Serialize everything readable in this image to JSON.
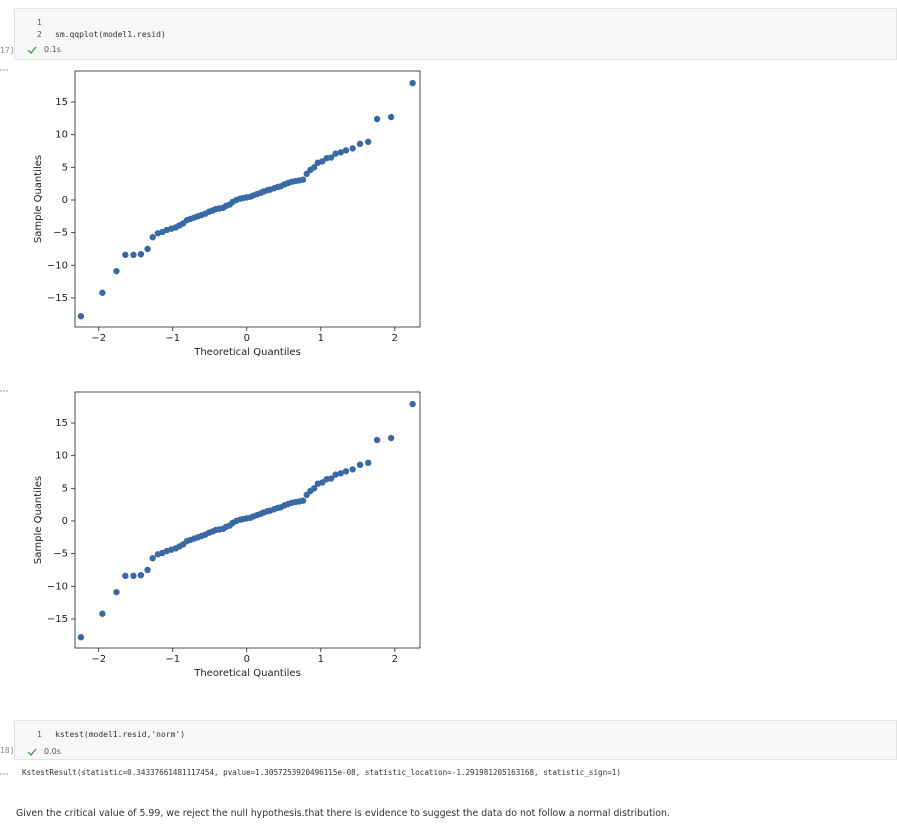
{
  "cell1": {
    "execution_label": "17]",
    "code_lines": [
      {
        "number": "1"
      },
      {
        "number": "2",
        "code": "sm.qqplot(model1.resid)"
      }
    ],
    "status": "0.1s"
  },
  "chart_data": [
    {
      "type": "scatter",
      "x_label": "Theoretical Quantiles",
      "y_label": "Sample Quantiles",
      "color": "#3a6aa3",
      "grid": false,
      "xlim": [
        -2.32,
        2.34
      ],
      "ylim": [
        -19.45,
        19.75
      ],
      "xticks": [
        {
          "value": -2,
          "label": "−2"
        },
        {
          "value": -1,
          "label": "−1"
        },
        0,
        1,
        2
      ],
      "yticks": [
        {
          "value": -15,
          "label": "−15"
        },
        {
          "value": -10,
          "label": "−10"
        },
        {
          "value": -5,
          "label": "−5"
        },
        0,
        5,
        10,
        15
      ],
      "x": [
        -2.24,
        -1.95,
        -1.76,
        -1.64,
        -1.53,
        -1.43,
        -1.34,
        -1.27,
        -1.2,
        -1.14,
        -1.08,
        -1.02,
        -0.96,
        -0.91,
        -0.86,
        -0.81,
        -0.76,
        -0.71,
        -0.66,
        -0.61,
        -0.56,
        -0.51,
        -0.46,
        -0.42,
        -0.37,
        -0.32,
        -0.28,
        -0.23,
        -0.19,
        -0.14,
        -0.09,
        -0.05,
        0,
        0.05,
        0.09,
        0.14,
        0.19,
        0.23,
        0.28,
        0.32,
        0.37,
        0.42,
        0.46,
        0.51,
        0.56,
        0.61,
        0.66,
        0.71,
        0.76,
        0.81,
        0.86,
        0.91,
        0.96,
        1.02,
        1.08,
        1.14,
        1.2,
        1.27,
        1.34,
        1.43,
        1.53,
        1.64,
        1.76,
        1.95,
        2.24
      ],
      "values": [
        -17.8,
        -14.2,
        -10.9,
        -8.4,
        -8.4,
        -8.3,
        -7.5,
        -5.7,
        -5.1,
        -4.9,
        -4.6,
        -4.4,
        -4.2,
        -3.9,
        -3.6,
        -3.1,
        -2.9,
        -2.7,
        -2.5,
        -2.3,
        -2.1,
        -1.8,
        -1.6,
        -1.4,
        -1.3,
        -1.2,
        -0.9,
        -0.7,
        -0.3,
        0,
        0.2,
        0.3,
        0.4,
        0.5,
        0.7,
        0.9,
        1.1,
        1.3,
        1.5,
        1.6,
        1.8,
        2,
        2.1,
        2.4,
        2.6,
        2.8,
        2.9,
        3,
        3.1,
        4,
        4.6,
        5,
        5.7,
        5.9,
        6.4,
        6.5,
        7.1,
        7.3,
        7.6,
        7.9,
        8.6,
        8.9,
        12.4,
        12.7,
        17.9
      ]
    },
    {
      "type": "scatter",
      "x_label": "Theoretical Quantiles",
      "y_label": "Sample Quantiles",
      "color": "#3a6aa3",
      "grid": false,
      "xlim": [
        -2.32,
        2.34
      ],
      "ylim": [
        -19.45,
        19.75
      ],
      "xticks": [
        {
          "value": -2,
          "label": "−2"
        },
        {
          "value": -1,
          "label": "−1"
        },
        0,
        1,
        2
      ],
      "yticks": [
        {
          "value": -15,
          "label": "−15"
        },
        {
          "value": -10,
          "label": "−10"
        },
        {
          "value": -5,
          "label": "−5"
        },
        0,
        5,
        10,
        15
      ],
      "x": [
        -2.24,
        -1.95,
        -1.76,
        -1.64,
        -1.53,
        -1.43,
        -1.34,
        -1.27,
        -1.2,
        -1.14,
        -1.08,
        -1.02,
        -0.96,
        -0.91,
        -0.86,
        -0.81,
        -0.76,
        -0.71,
        -0.66,
        -0.61,
        -0.56,
        -0.51,
        -0.46,
        -0.42,
        -0.37,
        -0.32,
        -0.28,
        -0.23,
        -0.19,
        -0.14,
        -0.09,
        -0.05,
        0,
        0.05,
        0.09,
        0.14,
        0.19,
        0.23,
        0.28,
        0.32,
        0.37,
        0.42,
        0.46,
        0.51,
        0.56,
        0.61,
        0.66,
        0.71,
        0.76,
        0.81,
        0.86,
        0.91,
        0.96,
        1.02,
        1.08,
        1.14,
        1.2,
        1.27,
        1.34,
        1.43,
        1.53,
        1.64,
        1.76,
        1.95,
        2.24
      ],
      "values": [
        -17.8,
        -14.2,
        -10.9,
        -8.4,
        -8.4,
        -8.3,
        -7.5,
        -5.7,
        -5.1,
        -4.9,
        -4.6,
        -4.4,
        -4.2,
        -3.9,
        -3.6,
        -3.1,
        -2.9,
        -2.7,
        -2.5,
        -2.3,
        -2.1,
        -1.8,
        -1.6,
        -1.4,
        -1.3,
        -1.2,
        -0.9,
        -0.7,
        -0.3,
        0,
        0.2,
        0.3,
        0.4,
        0.5,
        0.7,
        0.9,
        1.1,
        1.3,
        1.5,
        1.6,
        1.8,
        2,
        2.1,
        2.4,
        2.6,
        2.8,
        2.9,
        3,
        3.1,
        4,
        4.6,
        5,
        5.7,
        5.9,
        6.4,
        6.5,
        7.1,
        7.3,
        7.6,
        7.9,
        8.6,
        8.9,
        12.4,
        12.7,
        17.9
      ]
    }
  ],
  "cell2": {
    "execution_label": "18]",
    "code_lines": [
      {
        "number": "1",
        "code": "kstest(model1.resid,'norm')"
      }
    ],
    "status": "0.0s",
    "output": "KstestResult(statistic=0.34337661481117454, pvalue=1.3057253920496115e-08, statistic_location=-1.291981205163168, statistic_sign=1)"
  },
  "markdown": {
    "text": "Given the critical value of 5.99, we reject the null hypothesis.that there is evidence to suggest the data do not follow a normal distribution."
  }
}
